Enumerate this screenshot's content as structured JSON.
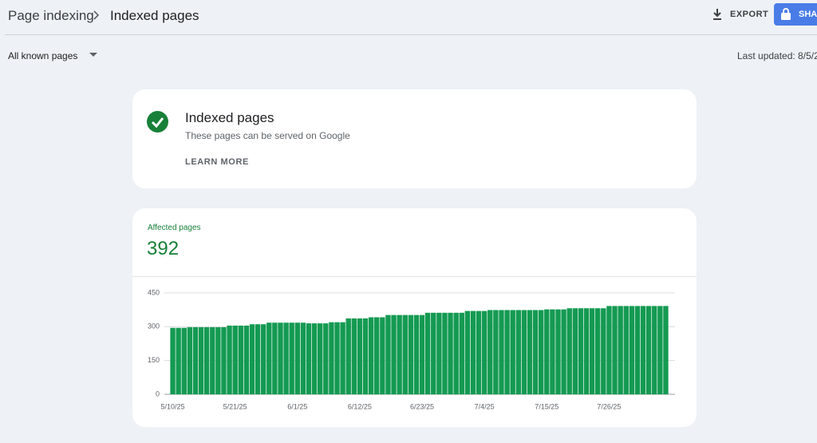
{
  "header": {
    "breadcrumb": [
      "Page indexing",
      "Indexed pages"
    ],
    "export": "EXPORT",
    "share": "SHA"
  },
  "filter": {
    "label": "All known pages",
    "last_updated": "Last updated: 8/5/2"
  },
  "status_card": {
    "title": "Indexed pages",
    "description": "These pages can be served on Google",
    "link": "LEARN MORE"
  },
  "chart_data": {
    "type": "bar",
    "title": "Affected pages",
    "subtitle": "392",
    "color": "#149a52",
    "grid": true,
    "ylim": [
      0,
      450
    ],
    "yticks": [
      0,
      150,
      300,
      450
    ],
    "categories": [
      "5/10/25",
      null,
      null,
      null,
      null,
      null,
      null,
      null,
      null,
      null,
      null,
      "5/21/25",
      null,
      null,
      null,
      null,
      null,
      null,
      null,
      null,
      null,
      null,
      "6/1/25",
      null,
      null,
      null,
      null,
      null,
      null,
      null,
      null,
      null,
      null,
      "6/12/25",
      null,
      null,
      null,
      null,
      null,
      null,
      null,
      null,
      null,
      null,
      "6/23/25",
      null,
      null,
      null,
      null,
      null,
      null,
      null,
      null,
      null,
      null,
      "7/4/25",
      null,
      null,
      null,
      null,
      null,
      null,
      null,
      null,
      null,
      null,
      "7/15/25",
      null,
      null,
      null,
      null,
      null,
      null,
      null,
      null,
      null,
      null,
      "7/26/25",
      null,
      null,
      null,
      null,
      null,
      null,
      null,
      null,
      null,
      null
    ],
    "values": [
      295,
      295,
      295,
      298,
      298,
      298,
      298,
      298,
      298,
      298,
      305,
      305,
      305,
      305,
      311,
      311,
      311,
      318,
      318,
      318,
      318,
      318,
      318,
      318,
      315,
      315,
      315,
      315,
      320,
      320,
      320,
      337,
      337,
      337,
      337,
      342,
      342,
      342,
      352,
      352,
      352,
      352,
      352,
      352,
      352,
      362,
      362,
      362,
      362,
      362,
      362,
      362,
      370,
      370,
      370,
      370,
      374,
      374,
      374,
      374,
      374,
      374,
      374,
      374,
      374,
      374,
      377,
      377,
      377,
      377,
      382,
      382,
      382,
      382,
      382,
      382,
      382,
      392,
      392,
      392,
      392,
      392,
      392,
      392,
      392,
      392,
      392,
      392
    ]
  }
}
